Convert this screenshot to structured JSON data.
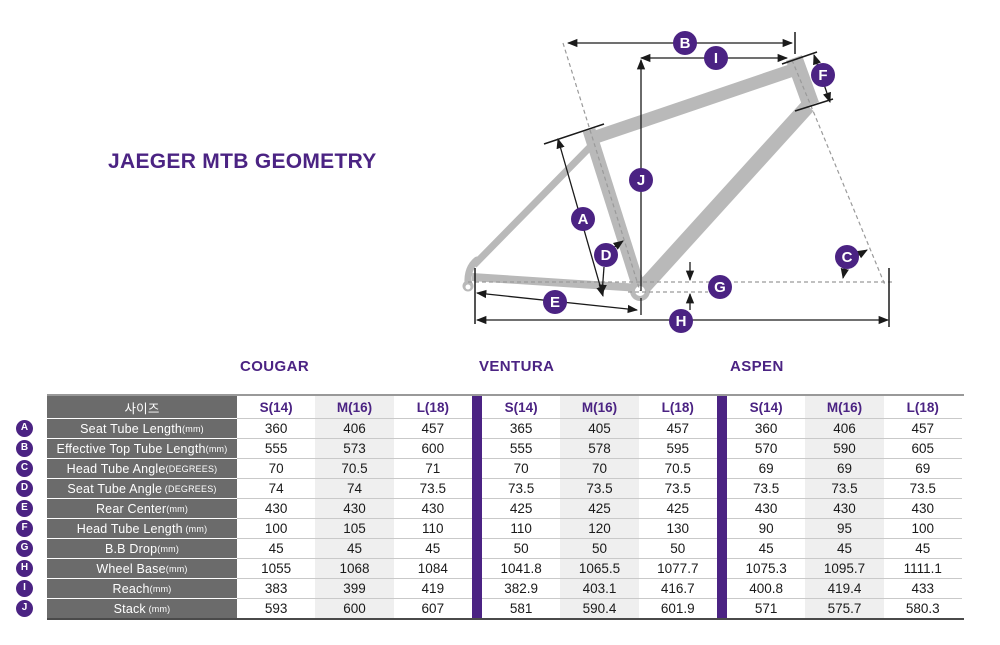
{
  "title": "JAEGER MTB GEOMETRY",
  "models": [
    {
      "name": "COUGAR"
    },
    {
      "name": "VENTURA"
    },
    {
      "name": "ASPEN"
    }
  ],
  "table": {
    "size_header": "사이즈",
    "size_columns": [
      "S(14)",
      "M(16)",
      "L(18)"
    ],
    "rows": [
      {
        "id": "A",
        "label": "Seat Tube Length",
        "unit": "(mm)",
        "cougar": [
          "360",
          "406",
          "457"
        ],
        "ventura": [
          "365",
          "405",
          "457"
        ],
        "aspen": [
          "360",
          "406",
          "457"
        ]
      },
      {
        "id": "B",
        "label": "Effective Top Tube Length",
        "unit": "(mm)",
        "cougar": [
          "555",
          "573",
          "600"
        ],
        "ventura": [
          "555",
          "578",
          "595"
        ],
        "aspen": [
          "570",
          "590",
          "605"
        ]
      },
      {
        "id": "C",
        "label": "Head Tube Angle",
        "unit": "(DEGREES)",
        "cougar": [
          "70",
          "70.5",
          "71"
        ],
        "ventura": [
          "70",
          "70",
          "70.5"
        ],
        "aspen": [
          "69",
          "69",
          "69"
        ]
      },
      {
        "id": "D",
        "label": "Seat Tube Angle",
        "unit": " (DEGREES)",
        "cougar": [
          "74",
          "74",
          "73.5"
        ],
        "ventura": [
          "73.5",
          "73.5",
          "73.5"
        ],
        "aspen": [
          "73.5",
          "73.5",
          "73.5"
        ]
      },
      {
        "id": "E",
        "label": "Rear Center",
        "unit": "(mm)",
        "cougar": [
          "430",
          "430",
          "430"
        ],
        "ventura": [
          "425",
          "425",
          "425"
        ],
        "aspen": [
          "430",
          "430",
          "430"
        ]
      },
      {
        "id": "F",
        "label": "Head Tube Length",
        "unit": " (mm)",
        "cougar": [
          "100",
          "105",
          "110"
        ],
        "ventura": [
          "110",
          "120",
          "130"
        ],
        "aspen": [
          "90",
          "95",
          "100"
        ]
      },
      {
        "id": "G",
        "label": "B.B Drop",
        "unit": "(mm)",
        "cougar": [
          "45",
          "45",
          "45"
        ],
        "ventura": [
          "50",
          "50",
          "50"
        ],
        "aspen": [
          "45",
          "45",
          "45"
        ]
      },
      {
        "id": "H",
        "label": "Wheel Base",
        "unit": "(mm)",
        "cougar": [
          "1055",
          "1068",
          "1084"
        ],
        "ventura": [
          "1041.8",
          "1065.5",
          "1077.7"
        ],
        "aspen": [
          "1075.3",
          "1095.7",
          "1111.1"
        ]
      },
      {
        "id": "I",
        "label": "Reach",
        "unit": "(mm)",
        "cougar": [
          "383",
          "399",
          "419"
        ],
        "ventura": [
          "382.9",
          "403.1",
          "416.7"
        ],
        "aspen": [
          "400.8",
          "419.4",
          "433"
        ]
      },
      {
        "id": "J",
        "label": "Stack",
        "unit": " (mm)",
        "cougar": [
          "593",
          "600",
          "607"
        ],
        "ventura": [
          "581",
          "590.4",
          "601.9"
        ],
        "aspen": [
          "571",
          "575.7",
          "580.3"
        ]
      }
    ]
  },
  "diagram": {
    "markers": [
      {
        "letter": "A"
      },
      {
        "letter": "B"
      },
      {
        "letter": "C"
      },
      {
        "letter": "D"
      },
      {
        "letter": "E"
      },
      {
        "letter": "F"
      },
      {
        "letter": "G"
      },
      {
        "letter": "H"
      },
      {
        "letter": "I"
      },
      {
        "letter": "J"
      }
    ]
  },
  "colors": {
    "purple": "#4B2383",
    "frame_gray": "#B9B9B9",
    "label_bg": "#6B6B6B",
    "stripe": "#EFEFEF"
  }
}
